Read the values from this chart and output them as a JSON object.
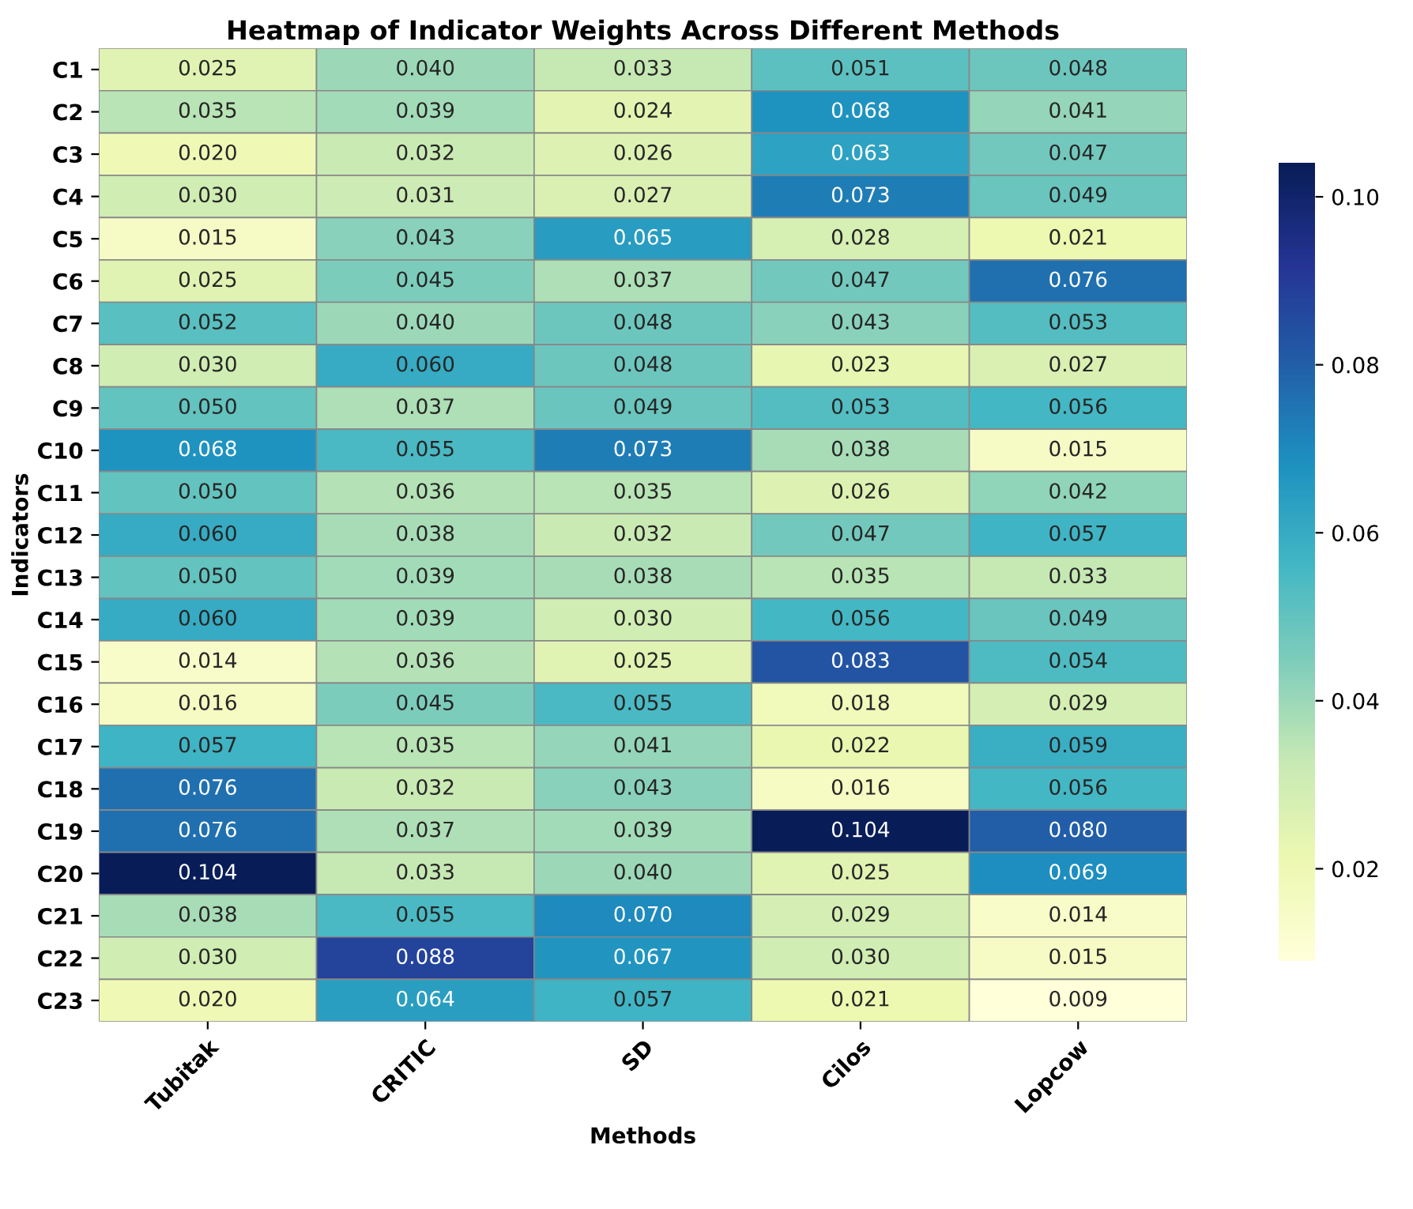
{
  "chart_data": {
    "type": "heatmap",
    "title": "Heatmap of Indicator Weights Across Different Methods",
    "xlabel": "Methods",
    "ylabel": "Indicators",
    "categories": [
      "Tubitak",
      "CRITIC",
      "SD",
      "Cilos",
      "Lopcow"
    ],
    "y_categories": [
      "C1",
      "C2",
      "C3",
      "C4",
      "C5",
      "C6",
      "C7",
      "C8",
      "C9",
      "C10",
      "C11",
      "C12",
      "C13",
      "C14",
      "C15",
      "C16",
      "C17",
      "C18",
      "C19",
      "C20",
      "C21",
      "C22",
      "C23"
    ],
    "cells": [
      [
        0.025,
        0.04,
        0.033,
        0.051,
        0.048
      ],
      [
        0.035,
        0.039,
        0.024,
        0.068,
        0.041
      ],
      [
        0.02,
        0.032,
        0.026,
        0.063,
        0.047
      ],
      [
        0.03,
        0.031,
        0.027,
        0.073,
        0.049
      ],
      [
        0.015,
        0.043,
        0.065,
        0.028,
        0.021
      ],
      [
        0.025,
        0.045,
        0.037,
        0.047,
        0.076
      ],
      [
        0.052,
        0.04,
        0.048,
        0.043,
        0.053
      ],
      [
        0.03,
        0.06,
        0.048,
        0.023,
        0.027
      ],
      [
        0.05,
        0.037,
        0.049,
        0.053,
        0.056
      ],
      [
        0.068,
        0.055,
        0.073,
        0.038,
        0.015
      ],
      [
        0.05,
        0.036,
        0.035,
        0.026,
        0.042
      ],
      [
        0.06,
        0.038,
        0.032,
        0.047,
        0.057
      ],
      [
        0.05,
        0.039,
        0.038,
        0.035,
        0.033
      ],
      [
        0.06,
        0.039,
        0.03,
        0.056,
        0.049
      ],
      [
        0.014,
        0.036,
        0.025,
        0.083,
        0.054
      ],
      [
        0.016,
        0.045,
        0.055,
        0.018,
        0.029
      ],
      [
        0.057,
        0.035,
        0.041,
        0.022,
        0.059
      ],
      [
        0.076,
        0.032,
        0.043,
        0.016,
        0.056
      ],
      [
        0.076,
        0.037,
        0.039,
        0.104,
        0.08
      ],
      [
        0.104,
        0.033,
        0.04,
        0.025,
        0.069
      ],
      [
        0.038,
        0.055,
        0.07,
        0.029,
        0.014
      ],
      [
        0.03,
        0.088,
        0.067,
        0.03,
        0.015
      ],
      [
        0.02,
        0.064,
        0.057,
        0.021,
        0.009
      ]
    ],
    "data_labels": true,
    "cell_labels": [
      [
        "0.025",
        "0.040",
        "0.033",
        "0.051",
        "0.048"
      ],
      [
        "0.035",
        "0.039",
        "0.024",
        "0.068",
        "0.041"
      ],
      [
        "0.020",
        "0.032",
        "0.026",
        "0.063",
        "0.047"
      ],
      [
        "0.030",
        "0.031",
        "0.027",
        "0.073",
        "0.049"
      ],
      [
        "0.015",
        "0.043",
        "0.065",
        "0.028",
        "0.021"
      ],
      [
        "0.025",
        "0.045",
        "0.037",
        "0.047",
        "0.076"
      ],
      [
        "0.052",
        "0.040",
        "0.048",
        "0.043",
        "0.053"
      ],
      [
        "0.030",
        "0.060",
        "0.048",
        "0.023",
        "0.027"
      ],
      [
        "0.050",
        "0.037",
        "0.049",
        "0.053",
        "0.056"
      ],
      [
        "0.068",
        "0.055",
        "0.073",
        "0.038",
        "0.015"
      ],
      [
        "0.050",
        "0.036",
        "0.035",
        "0.026",
        "0.042"
      ],
      [
        "0.060",
        "0.038",
        "0.032",
        "0.047",
        "0.057"
      ],
      [
        "0.050",
        "0.039",
        "0.038",
        "0.035",
        "0.033"
      ],
      [
        "0.060",
        "0.039",
        "0.030",
        "0.056",
        "0.049"
      ],
      [
        "0.014",
        "0.036",
        "0.025",
        "0.083",
        "0.054"
      ],
      [
        "0.016",
        "0.045",
        "0.055",
        "0.018",
        "0.029"
      ],
      [
        "0.057",
        "0.035",
        "0.041",
        "0.022",
        "0.059"
      ],
      [
        "0.076",
        "0.032",
        "0.043",
        "0.016",
        "0.056"
      ],
      [
        "0.076",
        "0.037",
        "0.039",
        "0.104",
        "0.080"
      ],
      [
        "0.104",
        "0.033",
        "0.040",
        "0.025",
        "0.069"
      ],
      [
        "0.038",
        "0.055",
        "0.070",
        "0.029",
        "0.014"
      ],
      [
        "0.030",
        "0.088",
        "0.067",
        "0.030",
        "0.015"
      ],
      [
        "0.020",
        "0.064",
        "0.057",
        "0.021",
        "0.009"
      ]
    ],
    "clim": [
      0.009,
      0.104
    ],
    "cticks": [
      0.02,
      0.04,
      0.06,
      0.08,
      {
        "value": 0.1,
        "label": "0.10"
      }
    ]
  }
}
